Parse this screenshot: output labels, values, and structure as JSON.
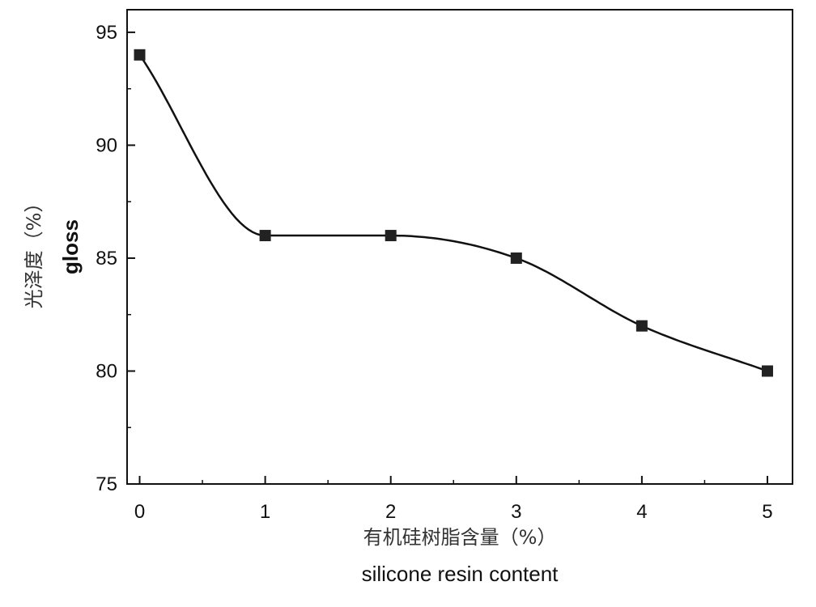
{
  "chart_data": {
    "type": "scatter",
    "title": "",
    "xlabel_cn": "有机硅树脂含量（%）",
    "xlabel": "silicone resin content",
    "ylabel_cn": "光泽度（%）",
    "ylabel": "gloss",
    "xlim": [
      -0.1,
      5.2
    ],
    "ylim": [
      75,
      96
    ],
    "x_ticks": [
      0,
      1,
      2,
      3,
      4,
      5
    ],
    "y_ticks": [
      75,
      80,
      85,
      90,
      95
    ],
    "grid": false,
    "legend": "none",
    "marker": "square",
    "fitted_curve": true,
    "series": [
      {
        "x": [
          0,
          1,
          2,
          3,
          4,
          5
        ],
        "values": [
          94,
          86,
          86,
          85,
          82,
          80
        ]
      }
    ],
    "colors": {
      "marker": "#222222",
      "line": "#111111",
      "axis": "#111111"
    }
  }
}
